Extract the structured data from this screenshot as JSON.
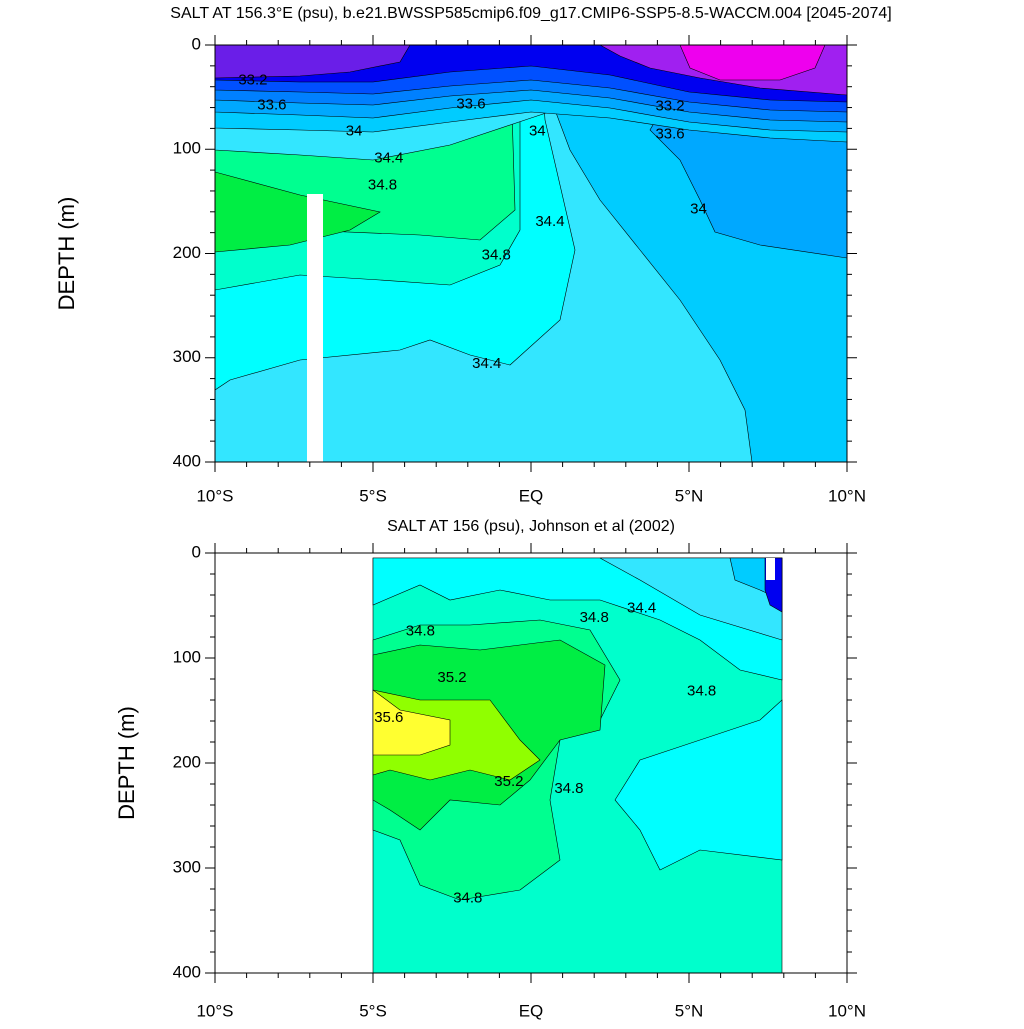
{
  "chart_data": [
    {
      "type": "contour",
      "title": "SALT AT 156.3°E (psu), b.e21.BWSSP585cmip6.f09_g17.CMIP6-SSP5-8.5-WACCM.004 [2045-2074]",
      "ylabel": "DEPTH (m)",
      "xlim": [
        -10,
        10
      ],
      "ylim": [
        400,
        0
      ],
      "xticks": [
        {
          "value": -10,
          "label": "10°S"
        },
        {
          "value": -5,
          "label": "5°S"
        },
        {
          "value": 0,
          "label": "EQ"
        },
        {
          "value": 5,
          "label": "5°N"
        },
        {
          "value": 10,
          "label": "10°N"
        }
      ],
      "yticks": [
        0,
        100,
        200,
        300,
        400
      ],
      "levels": [
        {
          "value": 32.8,
          "color": "#ee00ee"
        },
        {
          "value": 33.0,
          "color": "#a020f0"
        },
        {
          "value": 33.2,
          "color": "#6a1ee8"
        },
        {
          "value": 33.4,
          "color": "#0000f0"
        },
        {
          "value": 33.6,
          "color": "#0050ff"
        },
        {
          "value": 33.8,
          "color": "#0080ff"
        },
        {
          "value": 34.0,
          "color": "#00a8ff"
        },
        {
          "value": 34.2,
          "color": "#00ccff"
        },
        {
          "value": 34.4,
          "color": "#33e6ff"
        },
        {
          "value": 34.6,
          "color": "#00ffff"
        },
        {
          "value": 34.8,
          "color": "#00ffcc"
        },
        {
          "value": 35.0,
          "color": "#00ff90"
        },
        {
          "value": 35.2,
          "color": "#00ee44"
        }
      ],
      "contour_labels": [
        {
          "value": 33.2,
          "x": -8.8,
          "y": 34
        },
        {
          "value": 33.6,
          "x": -8.2,
          "y": 58
        },
        {
          "value": 33.6,
          "x": -1.9,
          "y": 57
        },
        {
          "value": 33.2,
          "x": 4.4,
          "y": 59
        },
        {
          "value": 34,
          "x": -5.6,
          "y": 83
        },
        {
          "value": 34,
          "x": 0.2,
          "y": 83
        },
        {
          "value": 33.6,
          "x": 4.4,
          "y": 86
        },
        {
          "value": 34.4,
          "x": -4.5,
          "y": 109
        },
        {
          "value": 34.8,
          "x": -4.7,
          "y": 135
        },
        {
          "value": 34.4,
          "x": 0.6,
          "y": 170
        },
        {
          "value": 34,
          "x": 5.3,
          "y": 158
        },
        {
          "value": 34.8,
          "x": -1.1,
          "y": 202
        },
        {
          "value": 34.4,
          "x": -1.4,
          "y": 306
        }
      ]
    },
    {
      "type": "contour",
      "title": "SALT AT 156 (psu), Johnson et al (2002)",
      "ylabel": "DEPTH (m)",
      "xlim": [
        -10,
        10
      ],
      "ylim": [
        400,
        0
      ],
      "xticks": [
        {
          "value": -10,
          "label": "10°S"
        },
        {
          "value": -5,
          "label": "5°S"
        },
        {
          "value": 0,
          "label": "EQ"
        },
        {
          "value": 5,
          "label": "5°N"
        },
        {
          "value": 10,
          "label": "10°N"
        }
      ],
      "yticks": [
        0,
        100,
        200,
        300,
        400
      ],
      "levels": [
        {
          "value": 34.0,
          "color": "#0000f0"
        },
        {
          "value": 34.2,
          "color": "#00ccff"
        },
        {
          "value": 34.4,
          "color": "#33e6ff"
        },
        {
          "value": 34.6,
          "color": "#00ffff"
        },
        {
          "value": 34.8,
          "color": "#00ffcc"
        },
        {
          "value": 35.0,
          "color": "#00ff90"
        },
        {
          "value": 35.2,
          "color": "#00ee44"
        },
        {
          "value": 35.4,
          "color": "#90ff00"
        },
        {
          "value": 35.6,
          "color": "#ffff30"
        }
      ],
      "contour_labels": [
        {
          "value": 34.8,
          "x": -3.5,
          "y": 75
        },
        {
          "value": 34.8,
          "x": 2.0,
          "y": 62
        },
        {
          "value": 34.4,
          "x": 3.5,
          "y": 53
        },
        {
          "value": 35.2,
          "x": -2.5,
          "y": 119
        },
        {
          "value": 34.8,
          "x": 5.4,
          "y": 132
        },
        {
          "value": 35.6,
          "x": -4.5,
          "y": 157
        },
        {
          "value": 35.2,
          "x": -0.7,
          "y": 218
        },
        {
          "value": 34.8,
          "x": 1.2,
          "y": 225
        },
        {
          "value": 34.8,
          "x": -2.0,
          "y": 329
        }
      ]
    }
  ]
}
